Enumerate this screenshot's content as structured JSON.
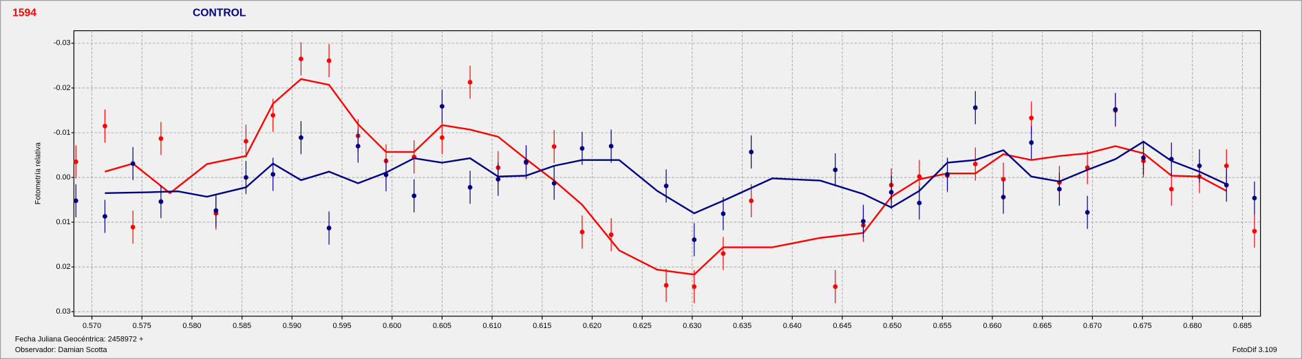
{
  "chart_data": {
    "type": "scatter",
    "title": "1594",
    "subtitle": "CONTROL",
    "y_label": "Fotometría relativa",
    "footer_left": [
      "Fecha Juliana Geocéntrica: 2458972 +",
      "Observador: Damian Scotta"
    ],
    "footer_right": "FotoDif 3.109",
    "xlim": [
      0.5682,
      0.6868
    ],
    "ylim": [
      -0.0328,
      0.031
    ],
    "y_inverted": true,
    "grid": true,
    "xticks": [
      {
        "value": 0.57,
        "label": "0.570"
      },
      0.575,
      {
        "value": 0.58,
        "label": "0.580"
      },
      0.585,
      {
        "value": 0.59,
        "label": "0.590"
      },
      0.595,
      {
        "value": 0.6,
        "label": "0.600"
      },
      0.605,
      {
        "value": 0.61,
        "label": "0.610"
      },
      0.615,
      {
        "value": 0.62,
        "label": "0.620"
      },
      0.625,
      {
        "value": 0.63,
        "label": "0.630"
      },
      0.635,
      {
        "value": 0.64,
        "label": "0.640"
      },
      0.645,
      {
        "value": 0.65,
        "label": "0.650"
      },
      0.655,
      {
        "value": 0.66,
        "label": "0.660"
      },
      0.665,
      {
        "value": 0.67,
        "label": "0.670"
      },
      0.675,
      {
        "value": 0.68,
        "label": "0.680"
      },
      0.685
    ],
    "yticks": [
      -0.03,
      -0.02,
      -0.01,
      {
        "value": 0,
        "label": "0.00"
      },
      0.01,
      0.02,
      0.03
    ],
    "series": [
      {
        "name": "1594",
        "color": "#ff0000",
        "error": 0.0037,
        "x": [
          0.5684,
          0.5713,
          0.5741,
          0.5769,
          0.5824,
          0.5854,
          0.5881,
          0.5909,
          0.5937,
          0.5966,
          0.5994,
          0.6022,
          0.605,
          0.6078,
          0.6106,
          0.6134,
          0.6162,
          0.619,
          0.6219,
          0.6274,
          0.6302,
          0.6331,
          0.6359,
          0.6443,
          0.6471,
          0.6499,
          0.6527,
          0.6555,
          0.6583,
          0.6611,
          0.6639,
          0.6667,
          0.6695,
          0.6723,
          0.6751,
          0.6779,
          0.6807,
          0.6834,
          0.6862
        ],
        "values": [
          -0.0035,
          -0.0115,
          0.0111,
          -0.0087,
          0.008,
          -0.0081,
          -0.0139,
          -0.0265,
          -0.0261,
          -0.0093,
          -0.0037,
          -0.0046,
          -0.0089,
          -0.0213,
          -0.0022,
          -0.0033,
          -0.0069,
          0.0122,
          0.0128,
          0.0241,
          0.0244,
          0.017,
          0.0052,
          0.0244,
          0.0107,
          0.0017,
          -0.0002,
          -0.0004,
          -0.003,
          0.0004,
          -0.0133,
          0.0011,
          -0.0022,
          -0.015,
          -0.0037,
          0.0026,
          -0.0002,
          -0.0026,
          0.012
        ],
        "trend_x": [
          0.5713,
          0.5741,
          0.5778,
          0.5815,
          0.5854,
          0.5881,
          0.5909,
          0.5937,
          0.5966,
          0.5994,
          0.6022,
          0.605,
          0.6078,
          0.6106,
          0.6134,
          0.6162,
          0.619,
          0.6227,
          0.6265,
          0.6302,
          0.6331,
          0.638,
          0.6428,
          0.6471,
          0.6499,
          0.6527,
          0.6555,
          0.6583,
          0.6611,
          0.6639,
          0.6667,
          0.6695,
          0.6723,
          0.6751,
          0.6779,
          0.6807,
          0.6834
        ],
        "trend": [
          -0.0013,
          -0.0031,
          0.0035,
          -0.003,
          -0.0048,
          -0.0165,
          -0.022,
          -0.0207,
          -0.0119,
          -0.0057,
          -0.0057,
          -0.0117,
          -0.0107,
          -0.0091,
          -0.0041,
          0.0007,
          0.0061,
          0.0163,
          0.0206,
          0.0217,
          0.0156,
          0.0156,
          0.0135,
          0.0124,
          0.0043,
          0.0004,
          -0.0009,
          -0.0009,
          -0.0052,
          -0.0039,
          -0.0048,
          -0.0054,
          -0.007,
          -0.0054,
          -0.0004,
          -0.0002,
          0.003
        ]
      },
      {
        "name": "CONTROL",
        "color": "#000080",
        "error": 0.0037,
        "x": [
          0.5684,
          0.5713,
          0.5741,
          0.5769,
          0.5824,
          0.5854,
          0.5881,
          0.5909,
          0.5937,
          0.5966,
          0.5994,
          0.6022,
          0.605,
          0.6078,
          0.6106,
          0.6134,
          0.6162,
          0.619,
          0.6219,
          0.6274,
          0.6302,
          0.6331,
          0.6359,
          0.6443,
          0.6471,
          0.6499,
          0.6527,
          0.6555,
          0.6583,
          0.6611,
          0.6639,
          0.6667,
          0.6695,
          0.6723,
          0.6751,
          0.6779,
          0.6807,
          0.6834,
          0.6862
        ],
        "values": [
          0.0052,
          0.0087,
          -0.0031,
          0.0054,
          0.0074,
          0.0,
          -0.0007,
          -0.0089,
          0.0113,
          -0.007,
          -0.0006,
          0.0041,
          -0.0159,
          0.0022,
          0.0004,
          -0.0035,
          0.0013,
          -0.0065,
          -0.007,
          0.0019,
          0.0139,
          0.0081,
          -0.0057,
          -0.0017,
          0.0098,
          0.0033,
          0.0057,
          -0.0007,
          -0.0156,
          0.0044,
          -0.0078,
          0.0026,
          0.0078,
          -0.0152,
          -0.0044,
          -0.0041,
          -0.0026,
          0.0017,
          0.0046
        ],
        "trend_x": [
          0.5713,
          0.5756,
          0.5786,
          0.5815,
          0.5854,
          0.5881,
          0.5909,
          0.5937,
          0.5966,
          0.5994,
          0.6022,
          0.605,
          0.6078,
          0.6106,
          0.6134,
          0.6162,
          0.619,
          0.6227,
          0.6265,
          0.6302,
          0.6331,
          0.638,
          0.6428,
          0.6471,
          0.6499,
          0.6527,
          0.6555,
          0.6583,
          0.6611,
          0.6639,
          0.6667,
          0.6695,
          0.6723,
          0.6751,
          0.6779,
          0.6807,
          0.6834
        ],
        "trend": [
          0.0035,
          0.0033,
          0.0031,
          0.0043,
          0.0022,
          -0.0031,
          0.0006,
          -0.0013,
          0.0013,
          -0.0011,
          -0.0043,
          -0.0033,
          -0.0043,
          -0.0002,
          -0.0004,
          -0.0026,
          -0.0039,
          -0.0039,
          0.003,
          0.008,
          0.0052,
          0.0002,
          0.0007,
          0.0037,
          0.0067,
          0.003,
          -0.0033,
          -0.0039,
          -0.0061,
          -0.0002,
          0.0009,
          -0.0017,
          -0.0041,
          -0.008,
          -0.0037,
          -0.0013,
          0.0015
        ]
      }
    ]
  }
}
